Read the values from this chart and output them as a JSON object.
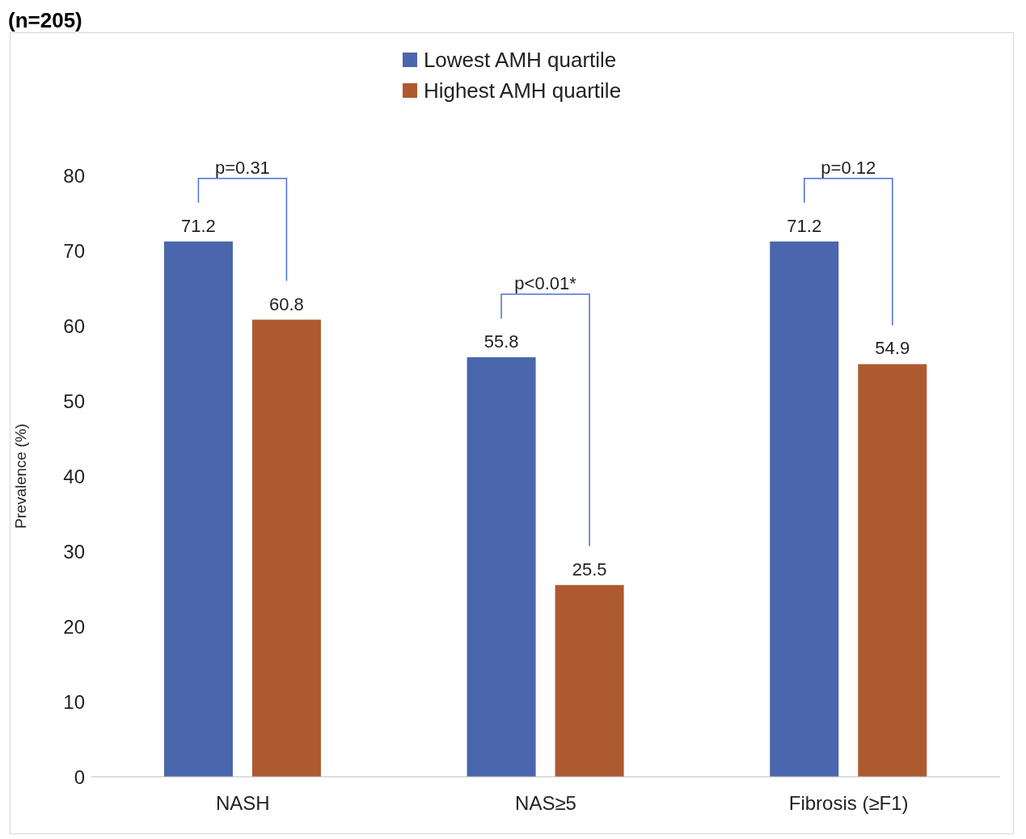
{
  "chart_data": {
    "type": "bar",
    "title": "(n=205)",
    "ylabel": "Prevalence (%)",
    "categories": [
      "NASH",
      "NAS≥5",
      "Fibrosis (≥F1)"
    ],
    "series": [
      {
        "name": "Lowest AMH quartile",
        "color": "#4a66ac",
        "values": [
          71.2,
          55.8,
          71.2
        ]
      },
      {
        "name": "Highest AMH quartile",
        "color": "#ae5a31",
        "values": [
          60.8,
          25.5,
          54.9
        ]
      }
    ],
    "ylim": [
      0,
      80
    ],
    "yticks": [
      0,
      10,
      20,
      30,
      40,
      50,
      60,
      70,
      80
    ],
    "data_labels": true,
    "grid": false,
    "legend": "top",
    "annotations": [
      "p=0.31",
      "p<0.01*",
      "p=0.12"
    ]
  }
}
